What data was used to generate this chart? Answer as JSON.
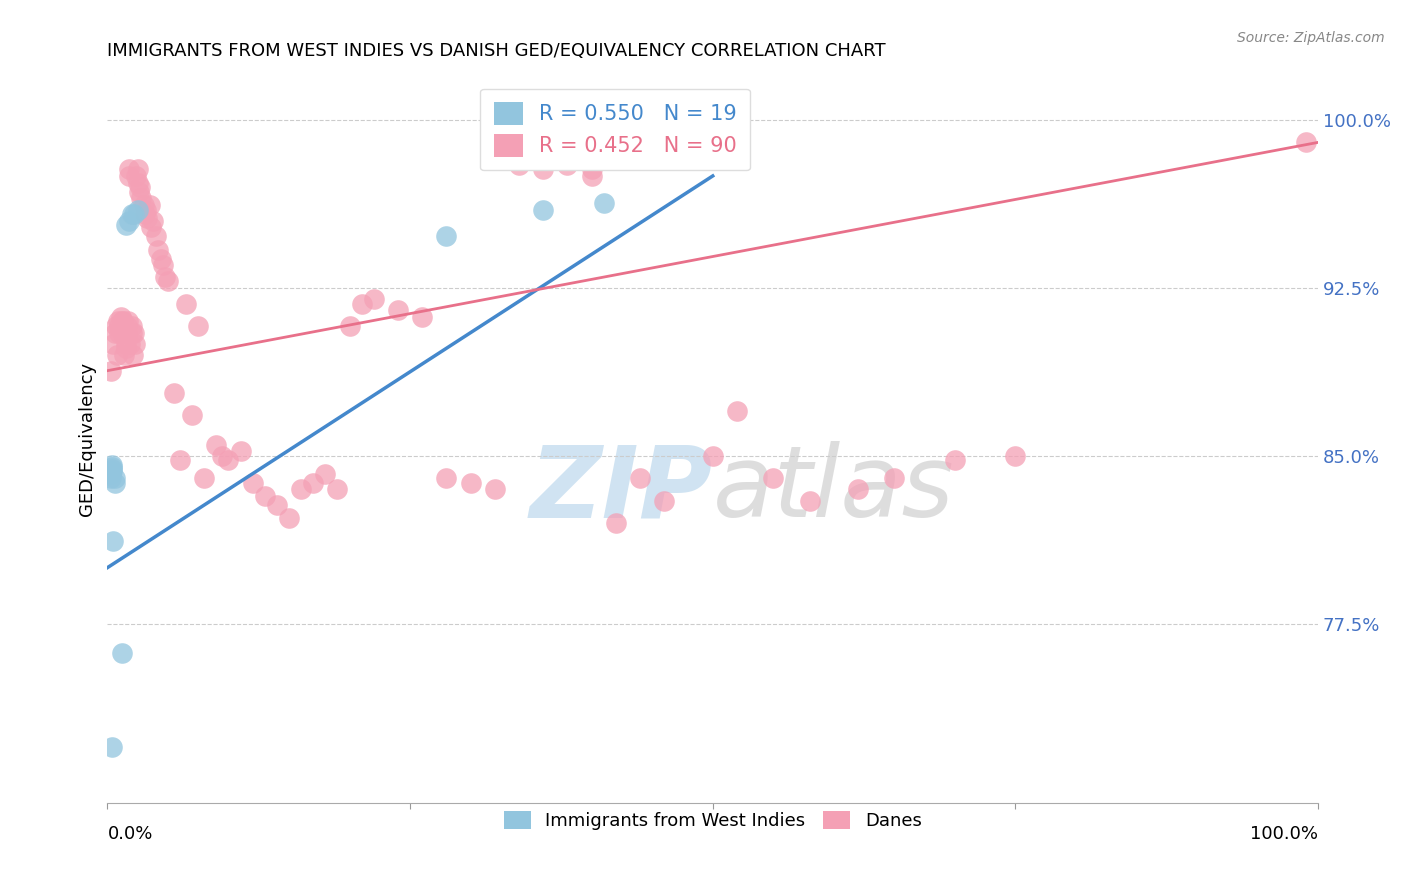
{
  "title": "IMMIGRANTS FROM WEST INDIES VS DANISH GED/EQUIVALENCY CORRELATION CHART",
  "source": "Source: ZipAtlas.com",
  "ylabel": "GED/Equivalency",
  "yticks": [
    0.775,
    0.85,
    0.925,
    1.0
  ],
  "ytick_labels": [
    "77.5%",
    "85.0%",
    "92.5%",
    "100.0%"
  ],
  "legend_blue_r": "0.550",
  "legend_blue_n": "19",
  "legend_pink_r": "0.452",
  "legend_pink_n": "90",
  "blue_color": "#92c5de",
  "pink_color": "#f4a0b5",
  "blue_line_color": "#4488cc",
  "pink_line_color": "#e8708a",
  "blue_scatter_x": [
    0.003,
    0.003,
    0.004,
    0.004,
    0.004,
    0.004,
    0.004,
    0.005,
    0.006,
    0.006,
    0.012,
    0.015,
    0.018,
    0.02,
    0.022,
    0.025,
    0.28,
    0.36,
    0.41
  ],
  "blue_scatter_y": [
    0.84,
    0.842,
    0.843,
    0.844,
    0.845,
    0.846,
    0.72,
    0.812,
    0.838,
    0.84,
    0.762,
    0.953,
    0.955,
    0.958,
    0.958,
    0.96,
    0.948,
    0.96,
    0.963
  ],
  "pink_scatter_x": [
    0.003,
    0.005,
    0.006,
    0.007,
    0.008,
    0.009,
    0.01,
    0.01,
    0.011,
    0.012,
    0.012,
    0.013,
    0.013,
    0.014,
    0.015,
    0.015,
    0.016,
    0.016,
    0.017,
    0.018,
    0.018,
    0.019,
    0.02,
    0.02,
    0.021,
    0.022,
    0.023,
    0.024,
    0.025,
    0.025,
    0.026,
    0.027,
    0.028,
    0.03,
    0.031,
    0.032,
    0.033,
    0.035,
    0.036,
    0.038,
    0.04,
    0.042,
    0.044,
    0.046,
    0.048,
    0.05,
    0.055,
    0.06,
    0.065,
    0.07,
    0.075,
    0.08,
    0.09,
    0.095,
    0.1,
    0.11,
    0.12,
    0.13,
    0.14,
    0.15,
    0.16,
    0.17,
    0.18,
    0.19,
    0.2,
    0.21,
    0.22,
    0.24,
    0.26,
    0.28,
    0.3,
    0.32,
    0.34,
    0.36,
    0.38,
    0.38,
    0.4,
    0.4,
    0.42,
    0.44,
    0.46,
    0.5,
    0.52,
    0.55,
    0.58,
    0.62,
    0.65,
    0.7,
    0.75,
    0.99
  ],
  "pink_scatter_y": [
    0.888,
    0.9,
    0.905,
    0.908,
    0.895,
    0.91,
    0.905,
    0.908,
    0.912,
    0.91,
    0.908,
    0.905,
    0.91,
    0.895,
    0.9,
    0.898,
    0.905,
    0.908,
    0.91,
    0.978,
    0.975,
    0.9,
    0.905,
    0.908,
    0.895,
    0.905,
    0.9,
    0.975,
    0.978,
    0.972,
    0.968,
    0.97,
    0.965,
    0.962,
    0.958,
    0.96,
    0.956,
    0.962,
    0.952,
    0.955,
    0.948,
    0.942,
    0.938,
    0.935,
    0.93,
    0.928,
    0.878,
    0.848,
    0.918,
    0.868,
    0.908,
    0.84,
    0.855,
    0.85,
    0.848,
    0.852,
    0.838,
    0.832,
    0.828,
    0.822,
    0.835,
    0.838,
    0.842,
    0.835,
    0.908,
    0.918,
    0.92,
    0.915,
    0.912,
    0.84,
    0.838,
    0.835,
    0.98,
    0.978,
    0.982,
    0.98,
    0.978,
    0.975,
    0.82,
    0.84,
    0.83,
    0.85,
    0.87,
    0.84,
    0.83,
    0.835,
    0.84,
    0.848,
    0.85,
    0.99
  ],
  "blue_line_x": [
    0.0,
    0.5
  ],
  "blue_line_y": [
    0.8,
    0.975
  ],
  "pink_line_x": [
    0.0,
    1.0
  ],
  "pink_line_y": [
    0.888,
    0.99
  ],
  "xlim": [
    0.0,
    1.0
  ],
  "ylim": [
    0.695,
    1.02
  ],
  "xmin_label": "0.0%",
  "xmax_label": "100.0%",
  "legend1_label": "Immigrants from West Indies",
  "legend2_label": "Danes"
}
